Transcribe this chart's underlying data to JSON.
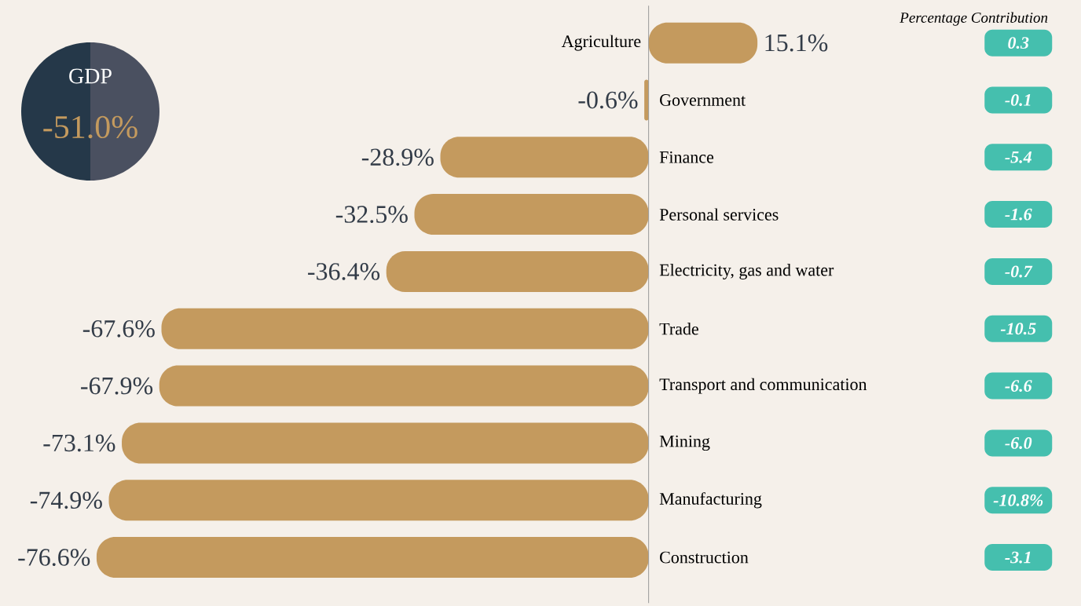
{
  "chart_data": {
    "type": "bar",
    "orientation": "horizontal",
    "categories": [
      "Agriculture",
      "Government",
      "Finance",
      "Personal services",
      "Electricity, gas and water",
      "Trade",
      "Transport and communication",
      "Mining",
      "Manufacturing",
      "Construction"
    ],
    "values": [
      15.1,
      -0.6,
      -28.9,
      -32.5,
      -36.4,
      -67.6,
      -67.9,
      -73.1,
      -74.9,
      -76.6
    ],
    "value_labels": [
      "15.1%",
      "-0.6%",
      "-28.9%",
      "-32.5%",
      "-36.4%",
      "-67.6%",
      "-67.9%",
      "-73.1%",
      "-74.9%",
      "-76.6%"
    ],
    "color": "#c49a5e",
    "xlim": [
      -90,
      60
    ],
    "annotations": [
      "GDP",
      "-51.0%",
      "Percentage Contribution",
      "0.3",
      "-0.1",
      "-5.4",
      "-1.6",
      "-0.7",
      "-10.5",
      "-6.6",
      "-6.0",
      "-10.8%",
      "-3.1"
    ]
  }
}
